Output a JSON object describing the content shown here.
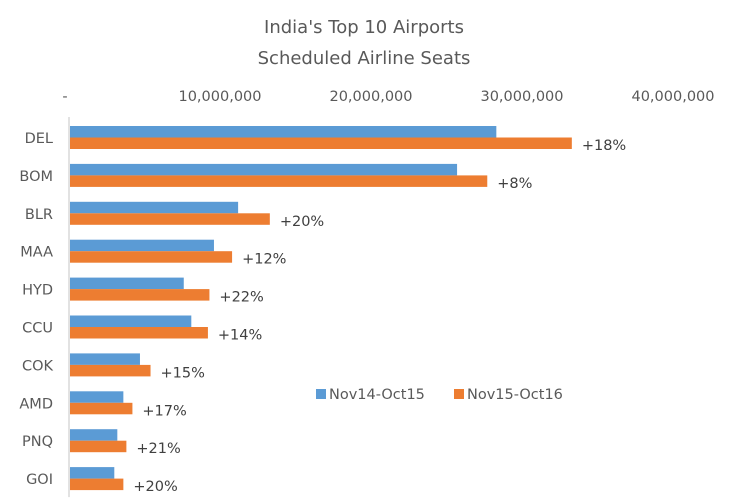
{
  "chart_data": {
    "type": "bar",
    "orientation": "horizontal",
    "title": "India's Top 10 Airports",
    "subtitle": "Scheduled Airline Seats",
    "xlabel": "",
    "ylabel": "",
    "xlim": [
      0,
      40000000
    ],
    "x_ticks": [
      0,
      10000000,
      20000000,
      30000000,
      40000000
    ],
    "x_tick_labels": [
      "-",
      "10,000,000",
      "20,000,000",
      "30,000,000",
      "40,000,000"
    ],
    "x_axis_position": "top",
    "grid": false,
    "categories": [
      "DEL",
      "BOM",
      "BLR",
      "MAA",
      "HYD",
      "CCU",
      "COK",
      "AMD",
      "PNQ",
      "GOI"
    ],
    "series": [
      {
        "name": "Nov14-Oct15",
        "color": "#5B9BD5",
        "values": [
          28300000,
          25700000,
          11200000,
          9600000,
          7600000,
          8100000,
          4700000,
          3600000,
          3200000,
          3000000
        ]
      },
      {
        "name": "Nov15-Oct16",
        "color": "#ED7D31",
        "values": [
          33300000,
          27700000,
          13300000,
          10800000,
          9300000,
          9200000,
          5400000,
          4200000,
          3800000,
          3600000
        ]
      }
    ],
    "data_labels": [
      "+18%",
      "+8%",
      "+20%",
      "+12%",
      "+22%",
      "+14%",
      "+15%",
      "+17%",
      "+21%",
      "+20%"
    ],
    "data_labels_series": "Nov15-Oct16",
    "legend": {
      "placement": "bottom-center-inside",
      "entries": [
        "Nov14-Oct15",
        "Nov15-Oct16"
      ]
    }
  }
}
